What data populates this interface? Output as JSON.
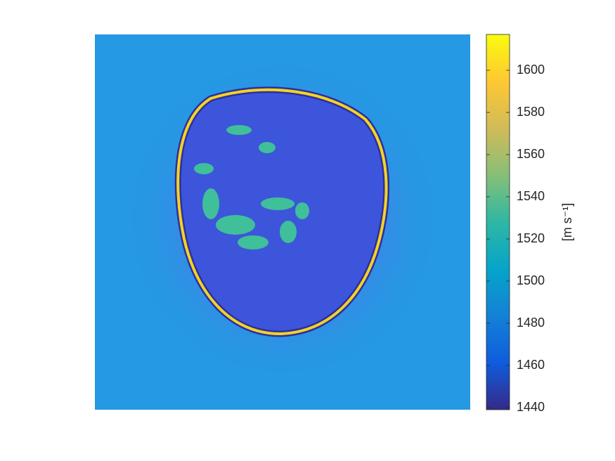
{
  "chart_data": {
    "type": "heatmap",
    "colorbar_label": "[m s⁻¹]",
    "colormap": "parula",
    "clim": [
      1439,
      1617
    ],
    "cticks": [
      1440,
      1460,
      1480,
      1500,
      1520,
      1540,
      1560,
      1580,
      1600
    ]
  }
}
